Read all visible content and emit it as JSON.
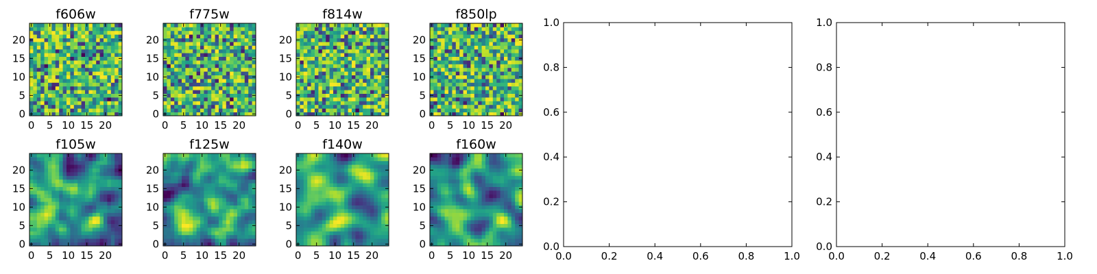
{
  "figure": {
    "background": "#ffffff"
  },
  "chart_data": [
    {
      "type": "heatmap",
      "title": "f606w",
      "grid_size": 25,
      "colormap": "viridis",
      "seed": 11,
      "smoothness": 0,
      "x_ticks": [
        "0",
        "5",
        "10",
        "15",
        "20"
      ],
      "y_ticks": [
        "0",
        "5",
        "10",
        "15",
        "20"
      ],
      "xlim": [
        0,
        25
      ],
      "ylim": [
        0,
        25
      ]
    },
    {
      "type": "heatmap",
      "title": "f775w",
      "grid_size": 25,
      "colormap": "viridis",
      "seed": 23,
      "smoothness": 0,
      "x_ticks": [
        "0",
        "5",
        "10",
        "15",
        "20"
      ],
      "y_ticks": [
        "0",
        "5",
        "10",
        "15",
        "20"
      ],
      "xlim": [
        0,
        25
      ],
      "ylim": [
        0,
        25
      ]
    },
    {
      "type": "heatmap",
      "title": "f814w",
      "grid_size": 25,
      "colormap": "viridis",
      "seed": 37,
      "smoothness": 0,
      "x_ticks": [
        "0",
        "5",
        "10",
        "15",
        "20"
      ],
      "y_ticks": [
        "0",
        "5",
        "10",
        "15",
        "20"
      ],
      "xlim": [
        0,
        25
      ],
      "ylim": [
        0,
        25
      ]
    },
    {
      "type": "heatmap",
      "title": "f850lp",
      "grid_size": 25,
      "colormap": "viridis",
      "seed": 41,
      "smoothness": 0,
      "x_ticks": [
        "0",
        "5",
        "10",
        "15",
        "20"
      ],
      "y_ticks": [
        "0",
        "5",
        "10",
        "15",
        "20"
      ],
      "xlim": [
        0,
        25
      ],
      "ylim": [
        0,
        25
      ]
    },
    {
      "type": "heatmap",
      "title": "f105w",
      "grid_size": 25,
      "colormap": "viridis",
      "seed": 53,
      "smoothness": 2,
      "x_ticks": [
        "0",
        "5",
        "10",
        "15",
        "20"
      ],
      "y_ticks": [
        "0",
        "5",
        "10",
        "15",
        "20"
      ],
      "xlim": [
        0,
        25
      ],
      "ylim": [
        0,
        25
      ]
    },
    {
      "type": "heatmap",
      "title": "f125w",
      "grid_size": 25,
      "colormap": "viridis",
      "seed": 67,
      "smoothness": 2,
      "x_ticks": [
        "0",
        "5",
        "10",
        "15",
        "20"
      ],
      "y_ticks": [
        "0",
        "5",
        "10",
        "15",
        "20"
      ],
      "xlim": [
        0,
        25
      ],
      "ylim": [
        0,
        25
      ]
    },
    {
      "type": "heatmap",
      "title": "f140w",
      "grid_size": 25,
      "colormap": "viridis",
      "seed": 71,
      "smoothness": 3,
      "x_ticks": [
        "0",
        "5",
        "10",
        "15",
        "20"
      ],
      "y_ticks": [
        "0",
        "5",
        "10",
        "15",
        "20"
      ],
      "xlim": [
        0,
        25
      ],
      "ylim": [
        0,
        25
      ]
    },
    {
      "type": "heatmap",
      "title": "f160w",
      "grid_size": 25,
      "colormap": "viridis",
      "seed": 89,
      "smoothness": 3,
      "x_ticks": [
        "0",
        "5",
        "10",
        "15",
        "20"
      ],
      "y_ticks": [
        "0",
        "5",
        "10",
        "15",
        "20"
      ],
      "xlim": [
        0,
        25
      ],
      "ylim": [
        0,
        25
      ]
    },
    {
      "type": "scatter",
      "title": "",
      "series": [],
      "x_ticks": [
        "0.0",
        "0.2",
        "0.4",
        "0.6",
        "0.8",
        "1.0"
      ],
      "y_ticks": [
        "0.0",
        "0.2",
        "0.4",
        "0.6",
        "0.8",
        "1.0"
      ],
      "xlim": [
        0,
        1
      ],
      "ylim": [
        0,
        1
      ],
      "grid": false
    },
    {
      "type": "scatter",
      "title": "",
      "series": [],
      "x_ticks": [
        "0.0",
        "0.2",
        "0.4",
        "0.6",
        "0.8",
        "1.0"
      ],
      "y_ticks": [
        "0.0",
        "0.2",
        "0.4",
        "0.6",
        "0.8",
        "1.0"
      ],
      "xlim": [
        0,
        1
      ],
      "ylim": [
        0,
        1
      ],
      "grid": false
    }
  ]
}
